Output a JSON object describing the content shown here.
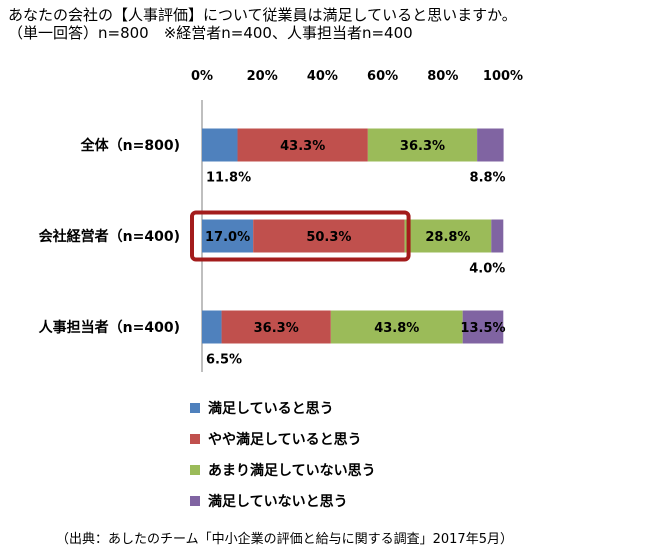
{
  "title_line1": "あなたの会社の【人事評価】について従業員は満足していると思いますか。",
  "title_line2": "（単一回答）n=800　※経営者n=400、人事担当者n=400",
  "source": "（出典：あしたのチーム「中小企業の評価と給与に関する調査」2017年5月）",
  "colors": {
    "satisfied": "#4F81BD",
    "somewhat_satisfied": "#C0504D",
    "not_very_satisfied": "#9BBB59",
    "not_satisfied": "#8064A2",
    "highlight_box": "#A31C1C"
  },
  "chart_data": {
    "type": "bar",
    "orientation": "horizontal",
    "stacked": true,
    "xlim": [
      0,
      100
    ],
    "x_ticks": [
      "0%",
      "20%",
      "40%",
      "60%",
      "80%",
      "100%"
    ],
    "categories": [
      "全体（n=800)",
      "会社経営者（n=400)",
      "人事担当者（n=400)"
    ],
    "series": [
      {
        "name": "満足していると思う",
        "values": [
          11.8,
          17.0,
          6.5
        ],
        "labels": [
          "11.8%",
          "17.0%",
          "6.5%"
        ]
      },
      {
        "name": "やや満足していると思う",
        "values": [
          43.3,
          50.3,
          36.3
        ],
        "labels": [
          "43.3%",
          "50.3%",
          "36.3%"
        ]
      },
      {
        "name": "あまり満足していない思う",
        "values": [
          36.3,
          28.8,
          43.8
        ],
        "labels": [
          "36.3%",
          "28.8%",
          "43.8%"
        ]
      },
      {
        "name": "満足していないと思う",
        "values": [
          8.8,
          4.0,
          13.5
        ],
        "labels": [
          "8.8%",
          "4.0%",
          "13.5%"
        ]
      }
    ],
    "legend_position": "bottom-left",
    "grid": false,
    "highlight": {
      "category_index": 1,
      "series_indices": [
        0,
        1
      ]
    }
  }
}
